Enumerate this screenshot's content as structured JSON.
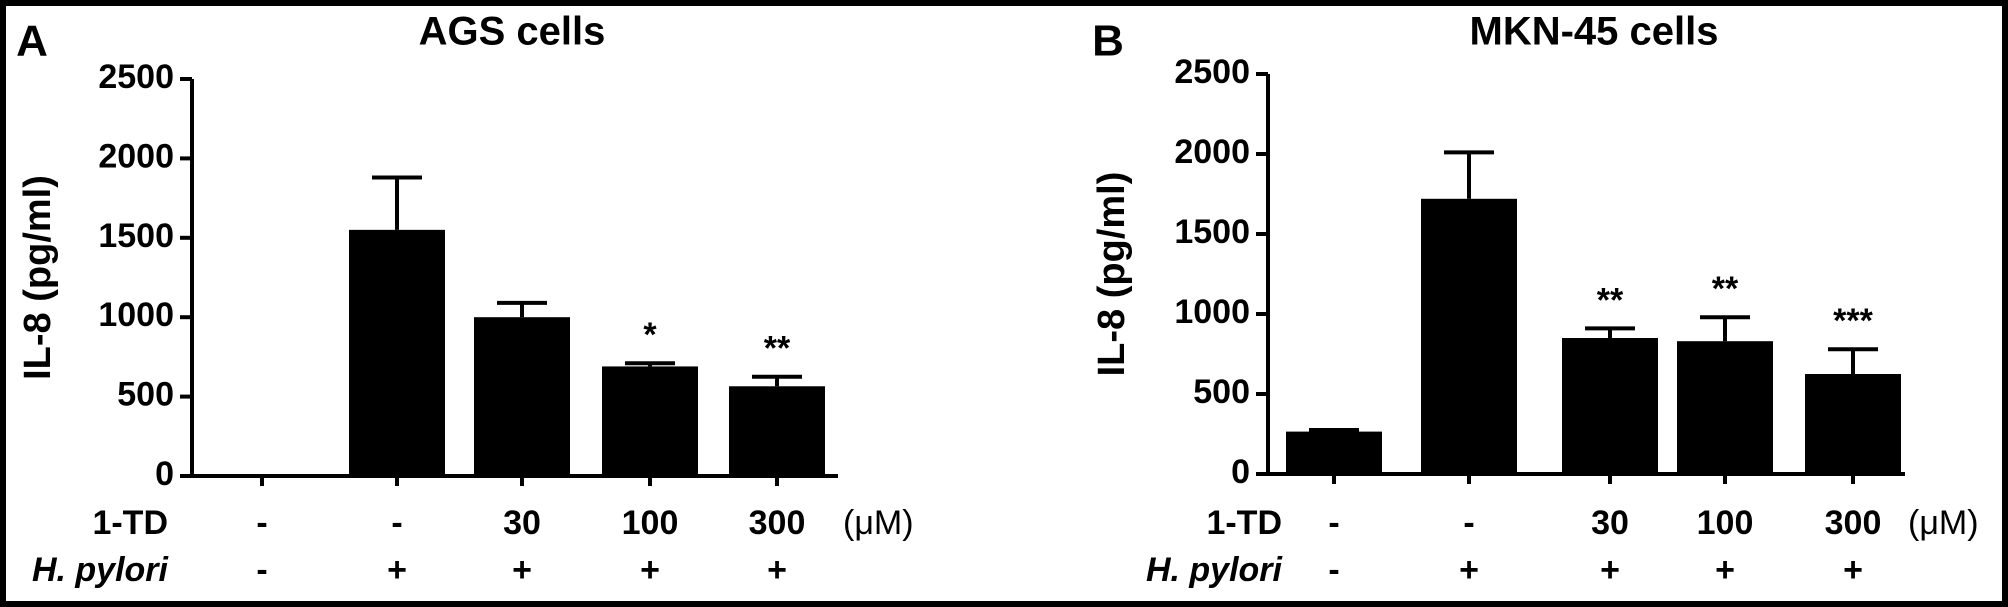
{
  "chart_data": [
    {
      "type": "bar",
      "panel": "A",
      "title": "AGS cells",
      "y_label": "IL-8 (pg/ml)",
      "categories": [
        null,
        null,
        null,
        null,
        null
      ],
      "values": [
        0,
        1550,
        1000,
        690,
        565
      ],
      "errors": [
        0,
        330,
        90,
        20,
        60
      ],
      "annotations": [
        null,
        null,
        null,
        "*",
        "**"
      ],
      "color": "#000000",
      "ylim": [
        0,
        2500
      ],
      "yticks": [
        0,
        500,
        1000,
        1500,
        2000,
        2500
      ],
      "conditions": [
        {
          "name": "1-TD",
          "values": [
            "-",
            "-",
            "30",
            "100",
            "300"
          ],
          "unit": "(μM)"
        },
        {
          "name": "H. pylori",
          "values": [
            "-",
            "+",
            "+",
            "+",
            "+"
          ]
        }
      ]
    },
    {
      "type": "bar",
      "panel": "B",
      "title": "MKN-45 cells",
      "y_label": "IL-8 (pg/ml)",
      "categories": [
        null,
        null,
        null,
        null,
        null
      ],
      "values": [
        265,
        1720,
        850,
        830,
        625
      ],
      "errors": [
        10,
        290,
        60,
        150,
        155
      ],
      "annotations": [
        null,
        null,
        "**",
        "**",
        "***"
      ],
      "color": "#000000",
      "ylim": [
        0,
        2500
      ],
      "yticks": [
        0,
        500,
        1000,
        1500,
        2000,
        2500
      ],
      "conditions": [
        {
          "name": "1-TD",
          "values": [
            "-",
            "-",
            "30",
            "100",
            "300"
          ],
          "unit": "(μM)"
        },
        {
          "name": "H. pylori",
          "values": [
            "-",
            "+",
            "+",
            "+",
            "+"
          ]
        }
      ]
    }
  ]
}
